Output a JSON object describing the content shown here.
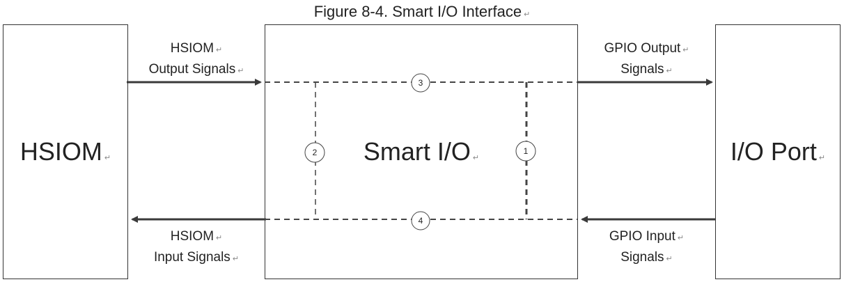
{
  "title": "Figure 8-4.  Smart I/O Interface",
  "blocks": {
    "hsiom": "HSIOM",
    "smartio": "Smart I/O",
    "ioport": "I/O Port"
  },
  "signals": {
    "hsiom_out": [
      "HSIOM",
      "Output Signals"
    ],
    "gpio_out": [
      "GPIO Output",
      "Signals"
    ],
    "hsiom_in": [
      "HSIOM",
      "Input Signals"
    ],
    "gpio_in": [
      "GPIO Input",
      "Signals"
    ]
  },
  "paths": [
    "1",
    "2",
    "3",
    "4"
  ],
  "mark": "↵"
}
